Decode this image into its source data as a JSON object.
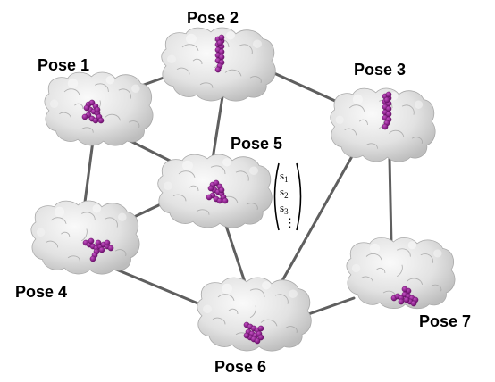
{
  "diagram": {
    "nodes": [
      {
        "id": "pose1",
        "label": "Pose 1",
        "ligand": "mid"
      },
      {
        "id": "pose2",
        "label": "Pose 2",
        "ligand": "vertical"
      },
      {
        "id": "pose3",
        "label": "Pose 3",
        "ligand": "vertical"
      },
      {
        "id": "pose4",
        "label": "Pose 4",
        "ligand": "cross"
      },
      {
        "id": "pose5",
        "label": "Pose 5",
        "ligand": "mid"
      },
      {
        "id": "pose6",
        "label": "Pose 6",
        "ligand": "lower"
      },
      {
        "id": "pose7",
        "label": "Pose 7",
        "ligand": "lower-right"
      }
    ],
    "edges": [
      [
        "pose1",
        "pose2"
      ],
      [
        "pose1",
        "pose4"
      ],
      [
        "pose1",
        "pose5"
      ],
      [
        "pose2",
        "pose3"
      ],
      [
        "pose2",
        "pose5"
      ],
      [
        "pose3",
        "pose6"
      ],
      [
        "pose3",
        "pose7"
      ],
      [
        "pose4",
        "pose5"
      ],
      [
        "pose4",
        "pose6"
      ],
      [
        "pose5",
        "pose6"
      ],
      [
        "pose6",
        "pose7"
      ]
    ],
    "state_vector": {
      "entries": [
        {
          "base": "s",
          "sub": "1"
        },
        {
          "base": "s",
          "sub": "2"
        },
        {
          "base": "s",
          "sub": "3"
        }
      ],
      "ellipsis": "⋮"
    },
    "colors": {
      "edge": "#5f5f5f",
      "protein": "#e6e6e6",
      "protein_shadow": "#b9b9b9",
      "ligand": "#8a1a8a",
      "ligand_dark": "#5a0d5a"
    }
  }
}
